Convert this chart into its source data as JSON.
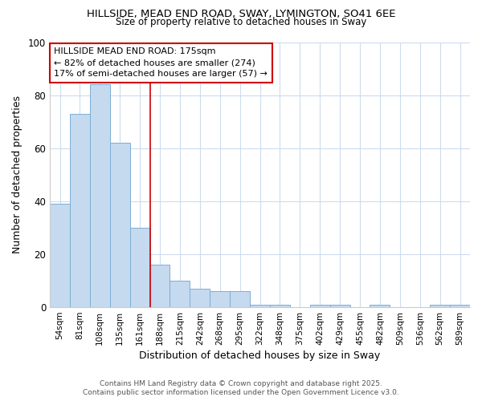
{
  "title1": "HILLSIDE, MEAD END ROAD, SWAY, LYMINGTON, SO41 6EE",
  "title2": "Size of property relative to detached houses in Sway",
  "xlabel": "Distribution of detached houses by size in Sway",
  "ylabel": "Number of detached properties",
  "categories": [
    "54sqm",
    "81sqm",
    "108sqm",
    "135sqm",
    "161sqm",
    "188sqm",
    "215sqm",
    "242sqm",
    "268sqm",
    "295sqm",
    "322sqm",
    "348sqm",
    "375sqm",
    "402sqm",
    "429sqm",
    "455sqm",
    "482sqm",
    "509sqm",
    "536sqm",
    "562sqm",
    "589sqm"
  ],
  "values": [
    39,
    73,
    84,
    62,
    30,
    16,
    10,
    7,
    6,
    6,
    1,
    1,
    0,
    1,
    1,
    0,
    1,
    0,
    0,
    1,
    1
  ],
  "bar_color": "#c5d9ef",
  "bar_edge_color": "#7bafd4",
  "property_line_x": 4.5,
  "annotation_title": "HILLSIDE MEAD END ROAD: 175sqm",
  "annotation_line2": "← 82% of detached houses are smaller (274)",
  "annotation_line3": "17% of semi-detached houses are larger (57) →",
  "annotation_box_color": "#ffffff",
  "annotation_box_edge": "#cc0000",
  "vline_color": "#cc0000",
  "background_color": "#ffffff",
  "plot_bg_color": "#ffffff",
  "grid_color": "#ccdcee",
  "ylim": [
    0,
    100
  ],
  "yticks": [
    0,
    20,
    40,
    60,
    80,
    100
  ],
  "title1_fontsize": 9.5,
  "title2_fontsize": 8.5,
  "footer1": "Contains HM Land Registry data © Crown copyright and database right 2025.",
  "footer2": "Contains public sector information licensed under the Open Government Licence v3.0."
}
